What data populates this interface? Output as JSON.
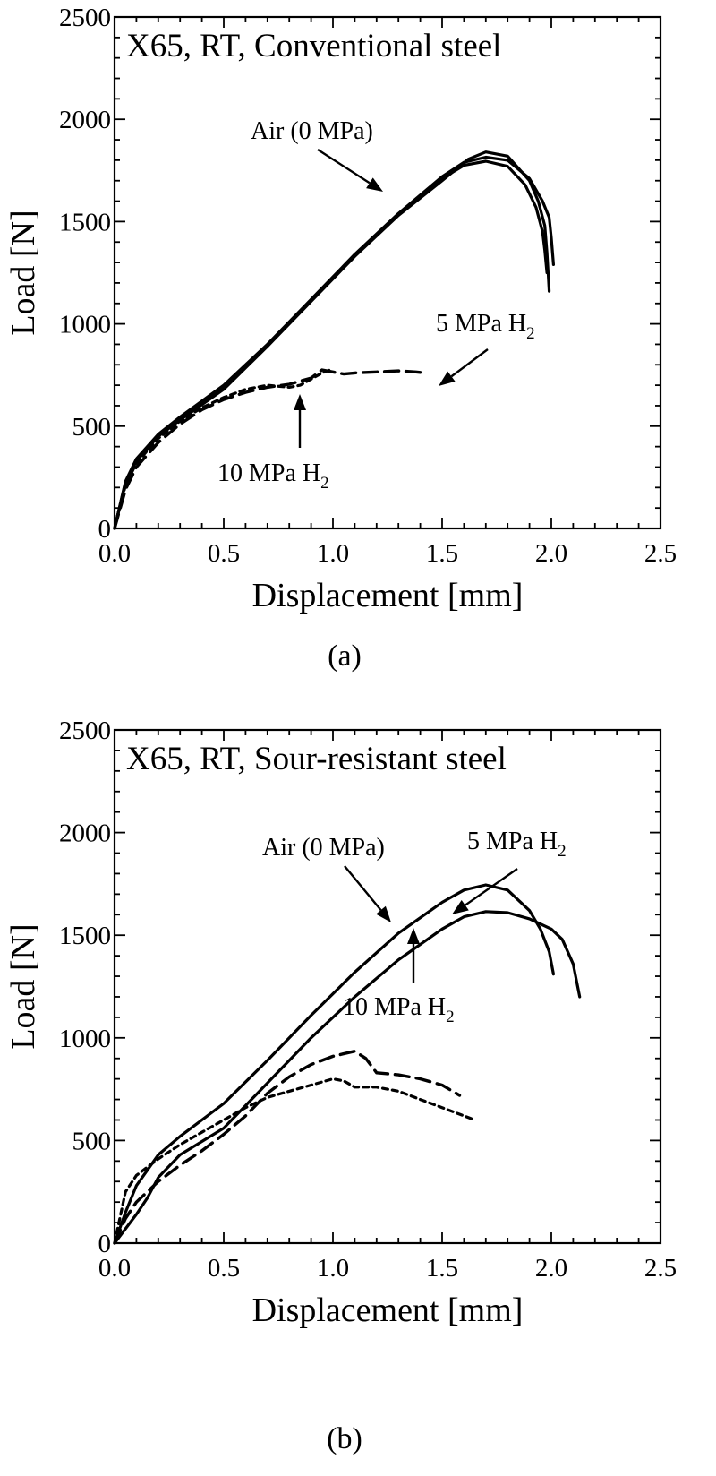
{
  "chart_data": [
    {
      "type": "line",
      "panel_label": "(a)",
      "title": "X65, RT, Conventional steel",
      "xlabel": "Displacement [mm]",
      "ylabel": "Load [N]",
      "xlim": [
        0,
        2.5
      ],
      "ylim": [
        0,
        2500
      ],
      "xticks": [
        0,
        0.5,
        1,
        1.5,
        2,
        2.5
      ],
      "xtick_labels": [
        "0.0",
        "0.5",
        "1.0",
        "1.5",
        "2.0",
        "2.5"
      ],
      "yticks": [
        0,
        500,
        1000,
        1500,
        2000,
        2500
      ],
      "ytick_labels": [
        "0",
        "500",
        "1000",
        "1500",
        "2000",
        "2500"
      ],
      "grid": false,
      "series": [
        {
          "group": "air",
          "style": "solid",
          "x": [
            0,
            0.05,
            0.1,
            0.2,
            0.3,
            0.5,
            0.7,
            0.9,
            1.1,
            1.3,
            1.5,
            1.6,
            1.7,
            1.8,
            1.9,
            1.96,
            1.99,
            2.0,
            2.01
          ],
          "y": [
            0,
            230,
            340,
            460,
            545,
            700,
            900,
            1120,
            1340,
            1540,
            1720,
            1790,
            1815,
            1800,
            1710,
            1600,
            1520,
            1420,
            1290
          ]
        },
        {
          "group": "air",
          "style": "solid",
          "x": [
            0,
            0.05,
            0.1,
            0.2,
            0.3,
            0.5,
            0.7,
            0.9,
            1.1,
            1.3,
            1.5,
            1.62,
            1.7,
            1.8,
            1.9,
            1.94,
            1.97,
            1.98,
            1.99
          ],
          "y": [
            0,
            220,
            330,
            450,
            530,
            680,
            890,
            1110,
            1330,
            1530,
            1700,
            1805,
            1840,
            1820,
            1700,
            1600,
            1480,
            1350,
            1160
          ]
        },
        {
          "group": "air",
          "style": "solid",
          "x": [
            0,
            0.05,
            0.1,
            0.2,
            0.3,
            0.5,
            0.7,
            0.9,
            1.1,
            1.3,
            1.5,
            1.6,
            1.7,
            1.8,
            1.88,
            1.93,
            1.96,
            1.97,
            1.98
          ],
          "y": [
            0,
            225,
            335,
            455,
            540,
            690,
            895,
            1115,
            1335,
            1535,
            1710,
            1775,
            1795,
            1770,
            1680,
            1570,
            1450,
            1360,
            1250
          ]
        },
        {
          "group": "5 MPa H2",
          "style": "dashed",
          "x": [
            0,
            0.05,
            0.1,
            0.2,
            0.3,
            0.4,
            0.5,
            0.6,
            0.7,
            0.8,
            0.9,
            0.95,
            1.0,
            1.05,
            1.1,
            1.2,
            1.3,
            1.38,
            1.42
          ],
          "y": [
            0,
            190,
            300,
            420,
            510,
            580,
            630,
            665,
            690,
            705,
            735,
            775,
            765,
            755,
            760,
            765,
            770,
            765,
            760
          ]
        },
        {
          "group": "10 MPa H2",
          "style": "dotted",
          "x": [
            0,
            0.05,
            0.1,
            0.2,
            0.3,
            0.4,
            0.5,
            0.6,
            0.7,
            0.8,
            0.85,
            0.9,
            0.95,
            1.0
          ],
          "y": [
            0,
            210,
            320,
            440,
            525,
            590,
            640,
            680,
            700,
            690,
            700,
            730,
            760,
            780
          ]
        }
      ],
      "annotations": [
        {
          "text": "Air (0 MPa)"
        },
        {
          "text": "5 MPa H",
          "sub": "2"
        },
        {
          "text": "10 MPa H",
          "sub": "2"
        }
      ]
    },
    {
      "type": "line",
      "panel_label": "(b)",
      "title": "X65, RT, Sour-resistant steel",
      "xlabel": "Displacement [mm]",
      "ylabel": "Load [N]",
      "xlim": [
        0,
        2.5
      ],
      "ylim": [
        0,
        2500
      ],
      "xticks": [
        0,
        0.5,
        1,
        1.5,
        2,
        2.5
      ],
      "xtick_labels": [
        "0.0",
        "0.5",
        "1.0",
        "1.5",
        "2.0",
        "2.5"
      ],
      "yticks": [
        0,
        500,
        1000,
        1500,
        2000,
        2500
      ],
      "ytick_labels": [
        "0",
        "500",
        "1000",
        "1500",
        "2000",
        "2500"
      ],
      "grid": false,
      "series": [
        {
          "group": "air",
          "style": "solid",
          "x": [
            0,
            0.05,
            0.1,
            0.2,
            0.3,
            0.5,
            0.7,
            0.9,
            1.1,
            1.3,
            1.5,
            1.6,
            1.7,
            1.8,
            1.9,
            1.95,
            1.99,
            2.01
          ],
          "y": [
            0,
            150,
            280,
            430,
            520,
            680,
            890,
            1110,
            1320,
            1510,
            1660,
            1720,
            1745,
            1720,
            1620,
            1530,
            1420,
            1310
          ]
        },
        {
          "group": "air",
          "style": "solid",
          "x": [
            0,
            0.05,
            0.1,
            0.15,
            0.2,
            0.3,
            0.5,
            0.7,
            0.9,
            1.1,
            1.3,
            1.5,
            1.6,
            1.7,
            1.8,
            1.9,
            2.0,
            2.05,
            2.1,
            2.13
          ],
          "y": [
            0,
            70,
            140,
            220,
            320,
            430,
            560,
            780,
            1000,
            1200,
            1380,
            1530,
            1590,
            1615,
            1610,
            1580,
            1530,
            1480,
            1360,
            1200
          ]
        },
        {
          "group": "5 MPa H2",
          "style": "dashed",
          "x": [
            0,
            0.05,
            0.1,
            0.2,
            0.3,
            0.4,
            0.5,
            0.6,
            0.7,
            0.8,
            0.9,
            1.0,
            1.1,
            1.15,
            1.2,
            1.3,
            1.4,
            1.5,
            1.58
          ],
          "y": [
            0,
            120,
            200,
            300,
            380,
            450,
            530,
            620,
            730,
            810,
            870,
            910,
            935,
            900,
            830,
            820,
            800,
            770,
            720
          ]
        },
        {
          "group": "10 MPa H2",
          "style": "dotted",
          "x": [
            0,
            0.05,
            0.1,
            0.2,
            0.3,
            0.4,
            0.5,
            0.6,
            0.7,
            0.8,
            0.9,
            1.0,
            1.05,
            1.1,
            1.2,
            1.3,
            1.4,
            1.5,
            1.6,
            1.65
          ],
          "y": [
            0,
            250,
            330,
            410,
            480,
            540,
            600,
            660,
            710,
            740,
            770,
            800,
            790,
            760,
            760,
            740,
            700,
            660,
            620,
            600
          ]
        }
      ],
      "annotations": [
        {
          "text": "Air (0 MPa)"
        },
        {
          "text": "5 MPa H",
          "sub": "2"
        },
        {
          "text": "10 MPa H",
          "sub": "2"
        }
      ]
    }
  ]
}
